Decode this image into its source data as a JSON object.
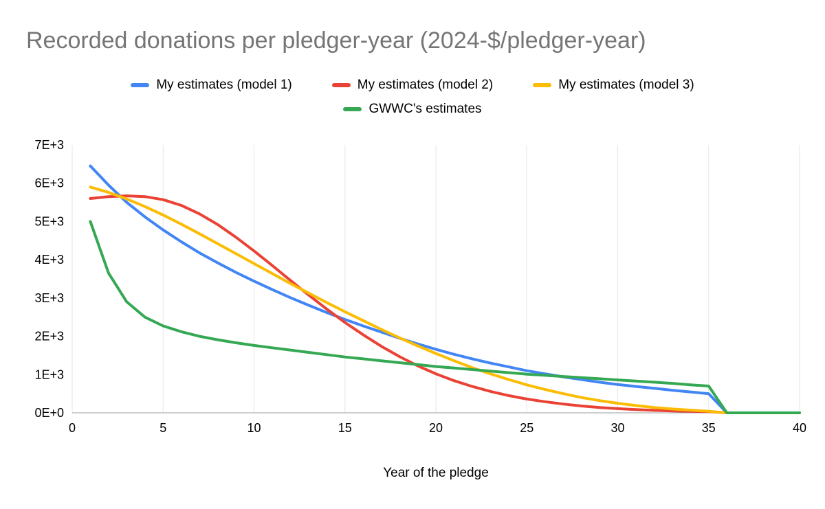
{
  "title": "Recorded donations per pledger-year (2024-$/pledger-year)",
  "colors": {
    "title": "#757575",
    "axis_labels": "#000000",
    "gridline": "#e6e6e6",
    "baseline": "#9e9e9e",
    "background": "#ffffff"
  },
  "legend": {
    "rows": [
      [
        0,
        1,
        2
      ],
      [
        3
      ]
    ]
  },
  "chart_data": {
    "type": "line",
    "title": "Recorded donations per pledger-year (2024-$/pledger-year)",
    "xlabel": "Year of the pledge",
    "ylabel": "",
    "xlim": [
      0,
      40
    ],
    "ylim": [
      0,
      7000
    ],
    "xticks": [
      0,
      5,
      10,
      15,
      20,
      25,
      30,
      35,
      40
    ],
    "ytick_values": [
      0,
      1000,
      2000,
      3000,
      4000,
      5000,
      6000,
      7000
    ],
    "ytick_labels": [
      "0E+0",
      "1E+3",
      "2E+3",
      "3E+3",
      "4E+3",
      "5E+3",
      "6E+3",
      "7E+3"
    ],
    "grid": "vertical",
    "legend_position": "top",
    "x": [
      1,
      2,
      3,
      4,
      5,
      6,
      7,
      8,
      9,
      10,
      11,
      12,
      13,
      14,
      15,
      16,
      17,
      18,
      19,
      20,
      21,
      22,
      23,
      24,
      25,
      26,
      27,
      28,
      29,
      30,
      31,
      32,
      33,
      34,
      35,
      36,
      37,
      38,
      39,
      40
    ],
    "series": [
      {
        "name": "My estimates (model 1)",
        "color": "#4285F4",
        "values": [
          6450,
          5950,
          5500,
          5120,
          4780,
          4470,
          4180,
          3920,
          3670,
          3440,
          3220,
          3010,
          2810,
          2620,
          2440,
          2270,
          2110,
          1950,
          1800,
          1660,
          1530,
          1410,
          1300,
          1200,
          1100,
          1020,
          940,
          870,
          800,
          740,
          690,
          640,
          590,
          545,
          500,
          0,
          0,
          0,
          0,
          0
        ]
      },
      {
        "name": "My estimates (model 2)",
        "color": "#EA4335",
        "values": [
          5600,
          5650,
          5670,
          5650,
          5570,
          5420,
          5200,
          4920,
          4590,
          4230,
          3850,
          3460,
          3080,
          2710,
          2360,
          2040,
          1740,
          1470,
          1230,
          1020,
          840,
          690,
          560,
          450,
          360,
          290,
          230,
          180,
          140,
          110,
          85,
          65,
          50,
          40,
          30,
          0,
          0,
          0,
          0,
          0
        ]
      },
      {
        "name": "My estimates (model 3)",
        "color": "#FBBC04",
        "values": [
          5900,
          5760,
          5590,
          5390,
          5170,
          4930,
          4680,
          4420,
          4160,
          3900,
          3640,
          3380,
          3130,
          2880,
          2640,
          2410,
          2180,
          1960,
          1750,
          1550,
          1360,
          1180,
          1020,
          870,
          730,
          610,
          500,
          400,
          320,
          250,
          190,
          140,
          100,
          70,
          40,
          0,
          0,
          0,
          0,
          0
        ]
      },
      {
        "name": "GWWC's estimates",
        "color": "#34A853",
        "values": [
          5000,
          3650,
          2900,
          2500,
          2270,
          2120,
          2000,
          1910,
          1830,
          1760,
          1700,
          1640,
          1580,
          1520,
          1460,
          1410,
          1360,
          1310,
          1260,
          1210,
          1170,
          1130,
          1090,
          1050,
          1010,
          980,
          950,
          920,
          890,
          860,
          830,
          800,
          770,
          730,
          700,
          0,
          0,
          0,
          0,
          0
        ]
      }
    ]
  }
}
